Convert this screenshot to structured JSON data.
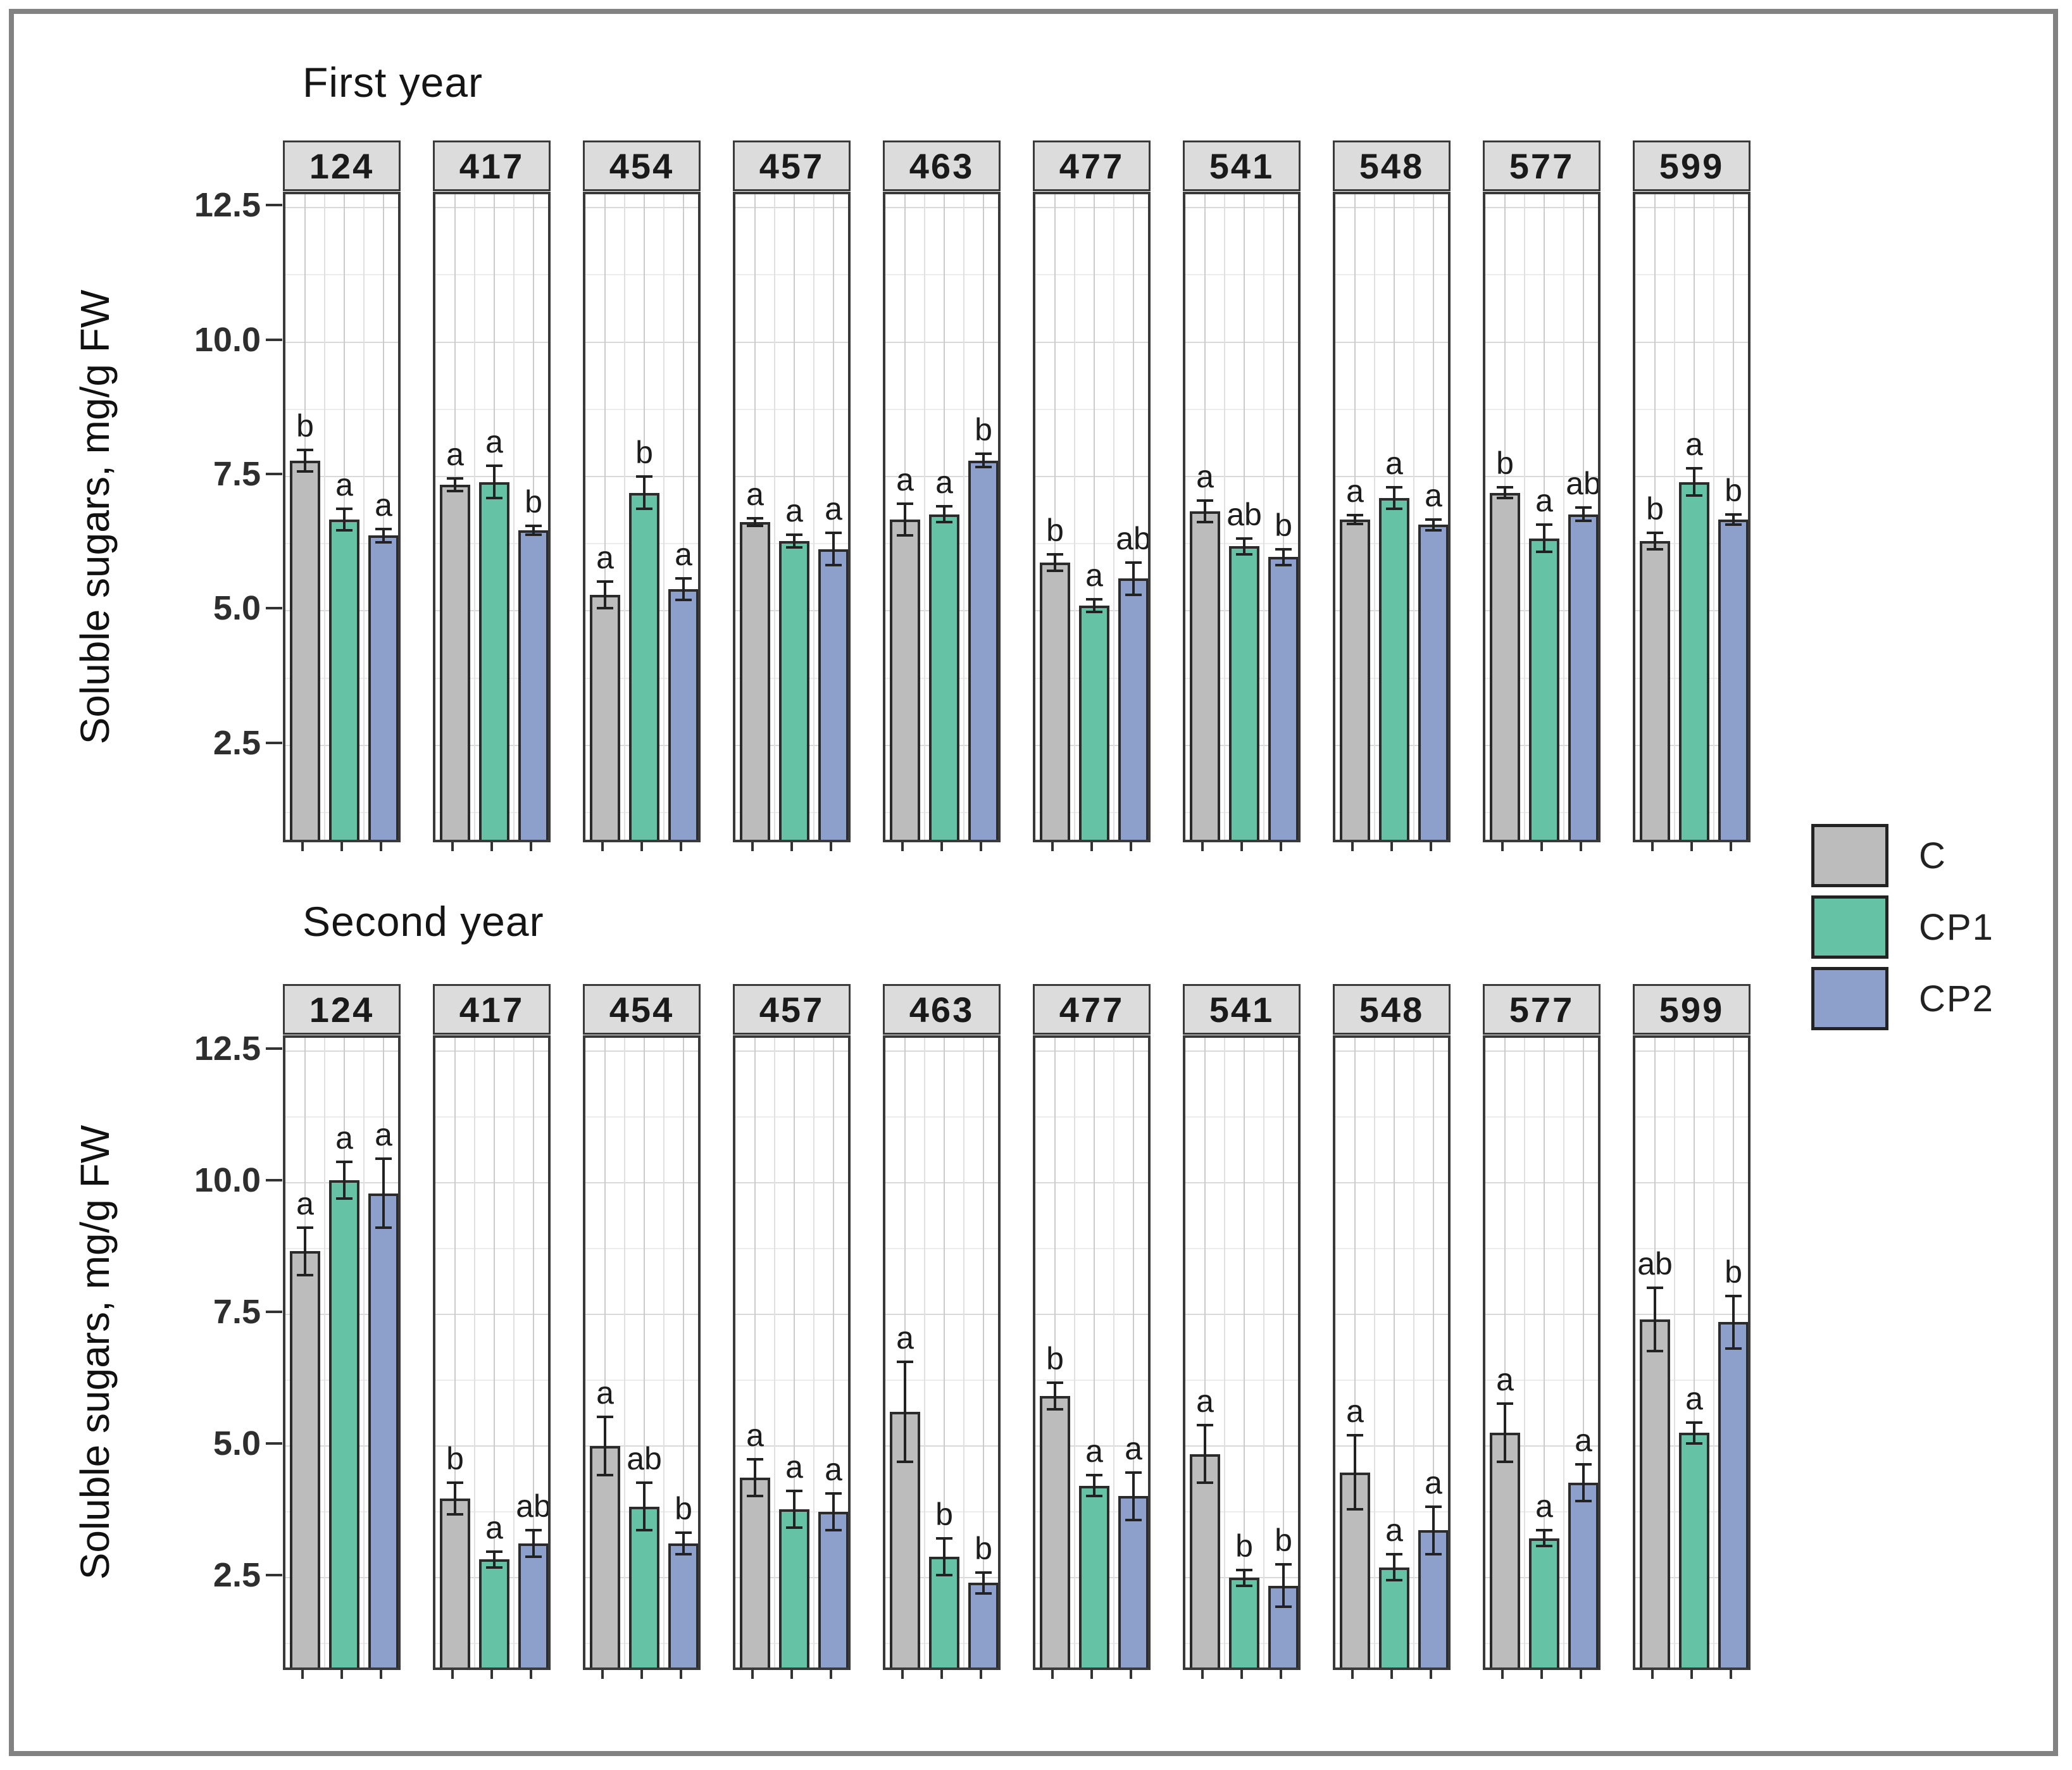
{
  "figure": {
    "y_axis_label": "Soluble sugars, mg/g FW",
    "legend": {
      "position": "right",
      "items": [
        {
          "label": "C",
          "color": "#bcbcbc"
        },
        {
          "label": "CP1",
          "color": "#66c2a5"
        },
        {
          "label": "CP2",
          "color": "#8da0cb"
        }
      ]
    },
    "frame_color": "#828282",
    "strip_color": "#dcdcdc"
  },
  "chart_data": [
    {
      "type": "bar",
      "title": "First year",
      "ylabel": "Soluble sugars, mg/g FW",
      "facets": [
        "124",
        "417",
        "454",
        "457",
        "463",
        "477",
        "541",
        "548",
        "577",
        "599"
      ],
      "categories": [
        "C",
        "CP1",
        "CP2"
      ],
      "yticks": [
        2.5,
        5.0,
        7.5,
        10.0,
        12.5
      ],
      "ylim": [
        0.65,
        12.75
      ],
      "grid": true,
      "legend_position": "right",
      "series": [
        {
          "name": "C",
          "color": "#bcbcbc",
          "values": [
            7.8,
            7.35,
            5.3,
            6.65,
            6.7,
            5.9,
            6.85,
            6.7,
            7.2,
            6.3
          ],
          "errors": [
            0.2,
            0.12,
            0.25,
            0.07,
            0.3,
            0.15,
            0.2,
            0.08,
            0.1,
            0.15
          ],
          "letters": [
            "b",
            "a",
            "a",
            "a",
            "a",
            "b",
            "a",
            "a",
            "b",
            "b"
          ]
        },
        {
          "name": "CP1",
          "color": "#66c2a5",
          "values": [
            6.7,
            7.4,
            7.2,
            6.3,
            6.8,
            5.1,
            6.2,
            7.1,
            6.35,
            7.4
          ],
          "errors": [
            0.2,
            0.3,
            0.3,
            0.12,
            0.15,
            0.12,
            0.15,
            0.2,
            0.25,
            0.25
          ],
          "letters": [
            "a",
            "a",
            "b",
            "a",
            "a",
            "a",
            "ab",
            "a",
            "a",
            "a"
          ]
        },
        {
          "name": "CP2",
          "color": "#8da0cb",
          "values": [
            6.4,
            6.5,
            5.4,
            6.15,
            7.8,
            5.6,
            6.0,
            6.6,
            6.8,
            6.7
          ],
          "errors": [
            0.12,
            0.08,
            0.2,
            0.3,
            0.12,
            0.3,
            0.15,
            0.1,
            0.12,
            0.1
          ],
          "letters": [
            "a",
            "b",
            "a",
            "a",
            "b",
            "ab",
            "b",
            "a",
            "ab",
            "b"
          ]
        }
      ]
    },
    {
      "type": "bar",
      "title": "Second year",
      "ylabel": "Soluble sugars, mg/g FW",
      "facets": [
        "124",
        "417",
        "454",
        "457",
        "463",
        "477",
        "541",
        "548",
        "577",
        "599"
      ],
      "categories": [
        "C",
        "CP1",
        "CP2"
      ],
      "yticks": [
        2.5,
        5.0,
        7.5,
        10.0,
        12.5
      ],
      "ylim": [
        0.7,
        12.75
      ],
      "grid": true,
      "legend_position": "right",
      "series": [
        {
          "name": "C",
          "color": "#bcbcbc",
          "values": [
            8.7,
            4.0,
            5.0,
            4.4,
            5.65,
            5.95,
            4.85,
            4.5,
            5.25,
            7.4
          ],
          "errors": [
            0.45,
            0.3,
            0.55,
            0.35,
            0.95,
            0.25,
            0.55,
            0.7,
            0.55,
            0.6
          ],
          "letters": [
            "a",
            "b",
            "a",
            "a",
            "a",
            "b",
            "a",
            "a",
            "a",
            "ab"
          ]
        },
        {
          "name": "CP1",
          "color": "#66c2a5",
          "values": [
            10.05,
            2.85,
            3.85,
            3.8,
            2.9,
            4.25,
            2.5,
            2.7,
            3.25,
            5.25
          ],
          "errors": [
            0.35,
            0.15,
            0.45,
            0.35,
            0.35,
            0.2,
            0.15,
            0.25,
            0.15,
            0.2
          ],
          "letters": [
            "a",
            "a",
            "ab",
            "a",
            "b",
            "a",
            "b",
            "a",
            "a",
            "a"
          ]
        },
        {
          "name": "CP2",
          "color": "#8da0cb",
          "values": [
            9.8,
            3.15,
            3.15,
            3.75,
            2.4,
            4.05,
            2.35,
            3.4,
            4.3,
            7.35
          ],
          "errors": [
            0.65,
            0.25,
            0.2,
            0.35,
            0.2,
            0.45,
            0.4,
            0.45,
            0.35,
            0.5
          ],
          "letters": [
            "a",
            "ab",
            "b",
            "a",
            "b",
            "a",
            "b",
            "a",
            "a",
            "b"
          ]
        }
      ]
    }
  ]
}
